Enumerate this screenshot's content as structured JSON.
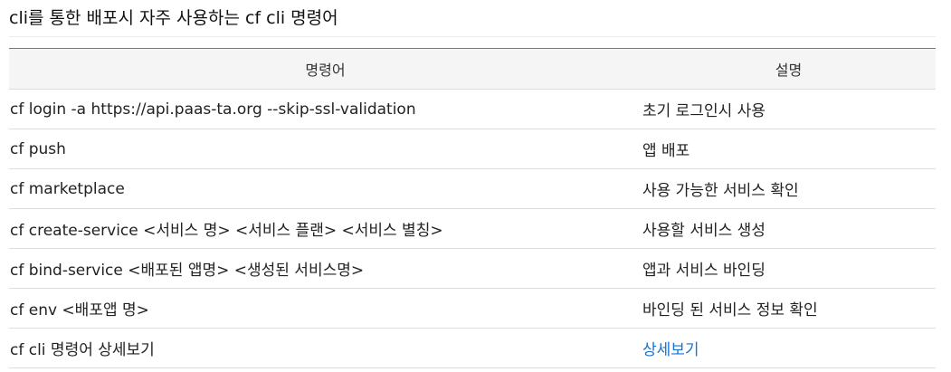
{
  "title": "cli를 통한 배포시 자주 사용하는 cf cli 명령어",
  "table": {
    "headers": [
      "명령어",
      "설명"
    ],
    "rows": [
      {
        "command": "cf login -a https://api.paas-ta.org --skip-ssl-validation",
        "description": "초기 로그인시 사용"
      },
      {
        "command": "cf push",
        "description": "앱 배포"
      },
      {
        "command": "cf marketplace",
        "description": "사용 가능한 서비스 확인"
      },
      {
        "command": "cf create-service <서비스 명> <서비스 플랜> <서비스 별칭>",
        "description": "사용할 서비스 생성"
      },
      {
        "command": "cf bind-service <배포된 앱명> <생성된 서비스명>",
        "description": "앱과 서비스 바인딩"
      },
      {
        "command": "cf env <배포앱 명>",
        "description": "바인딩 된 서비스 정보 확인"
      },
      {
        "command": "cf cli 명령어 상세보기",
        "description": "상세보기"
      }
    ]
  },
  "colors": {
    "link": "#1a73c8",
    "header_bg": "#f5f5f5",
    "row_border": "#dddddd"
  }
}
